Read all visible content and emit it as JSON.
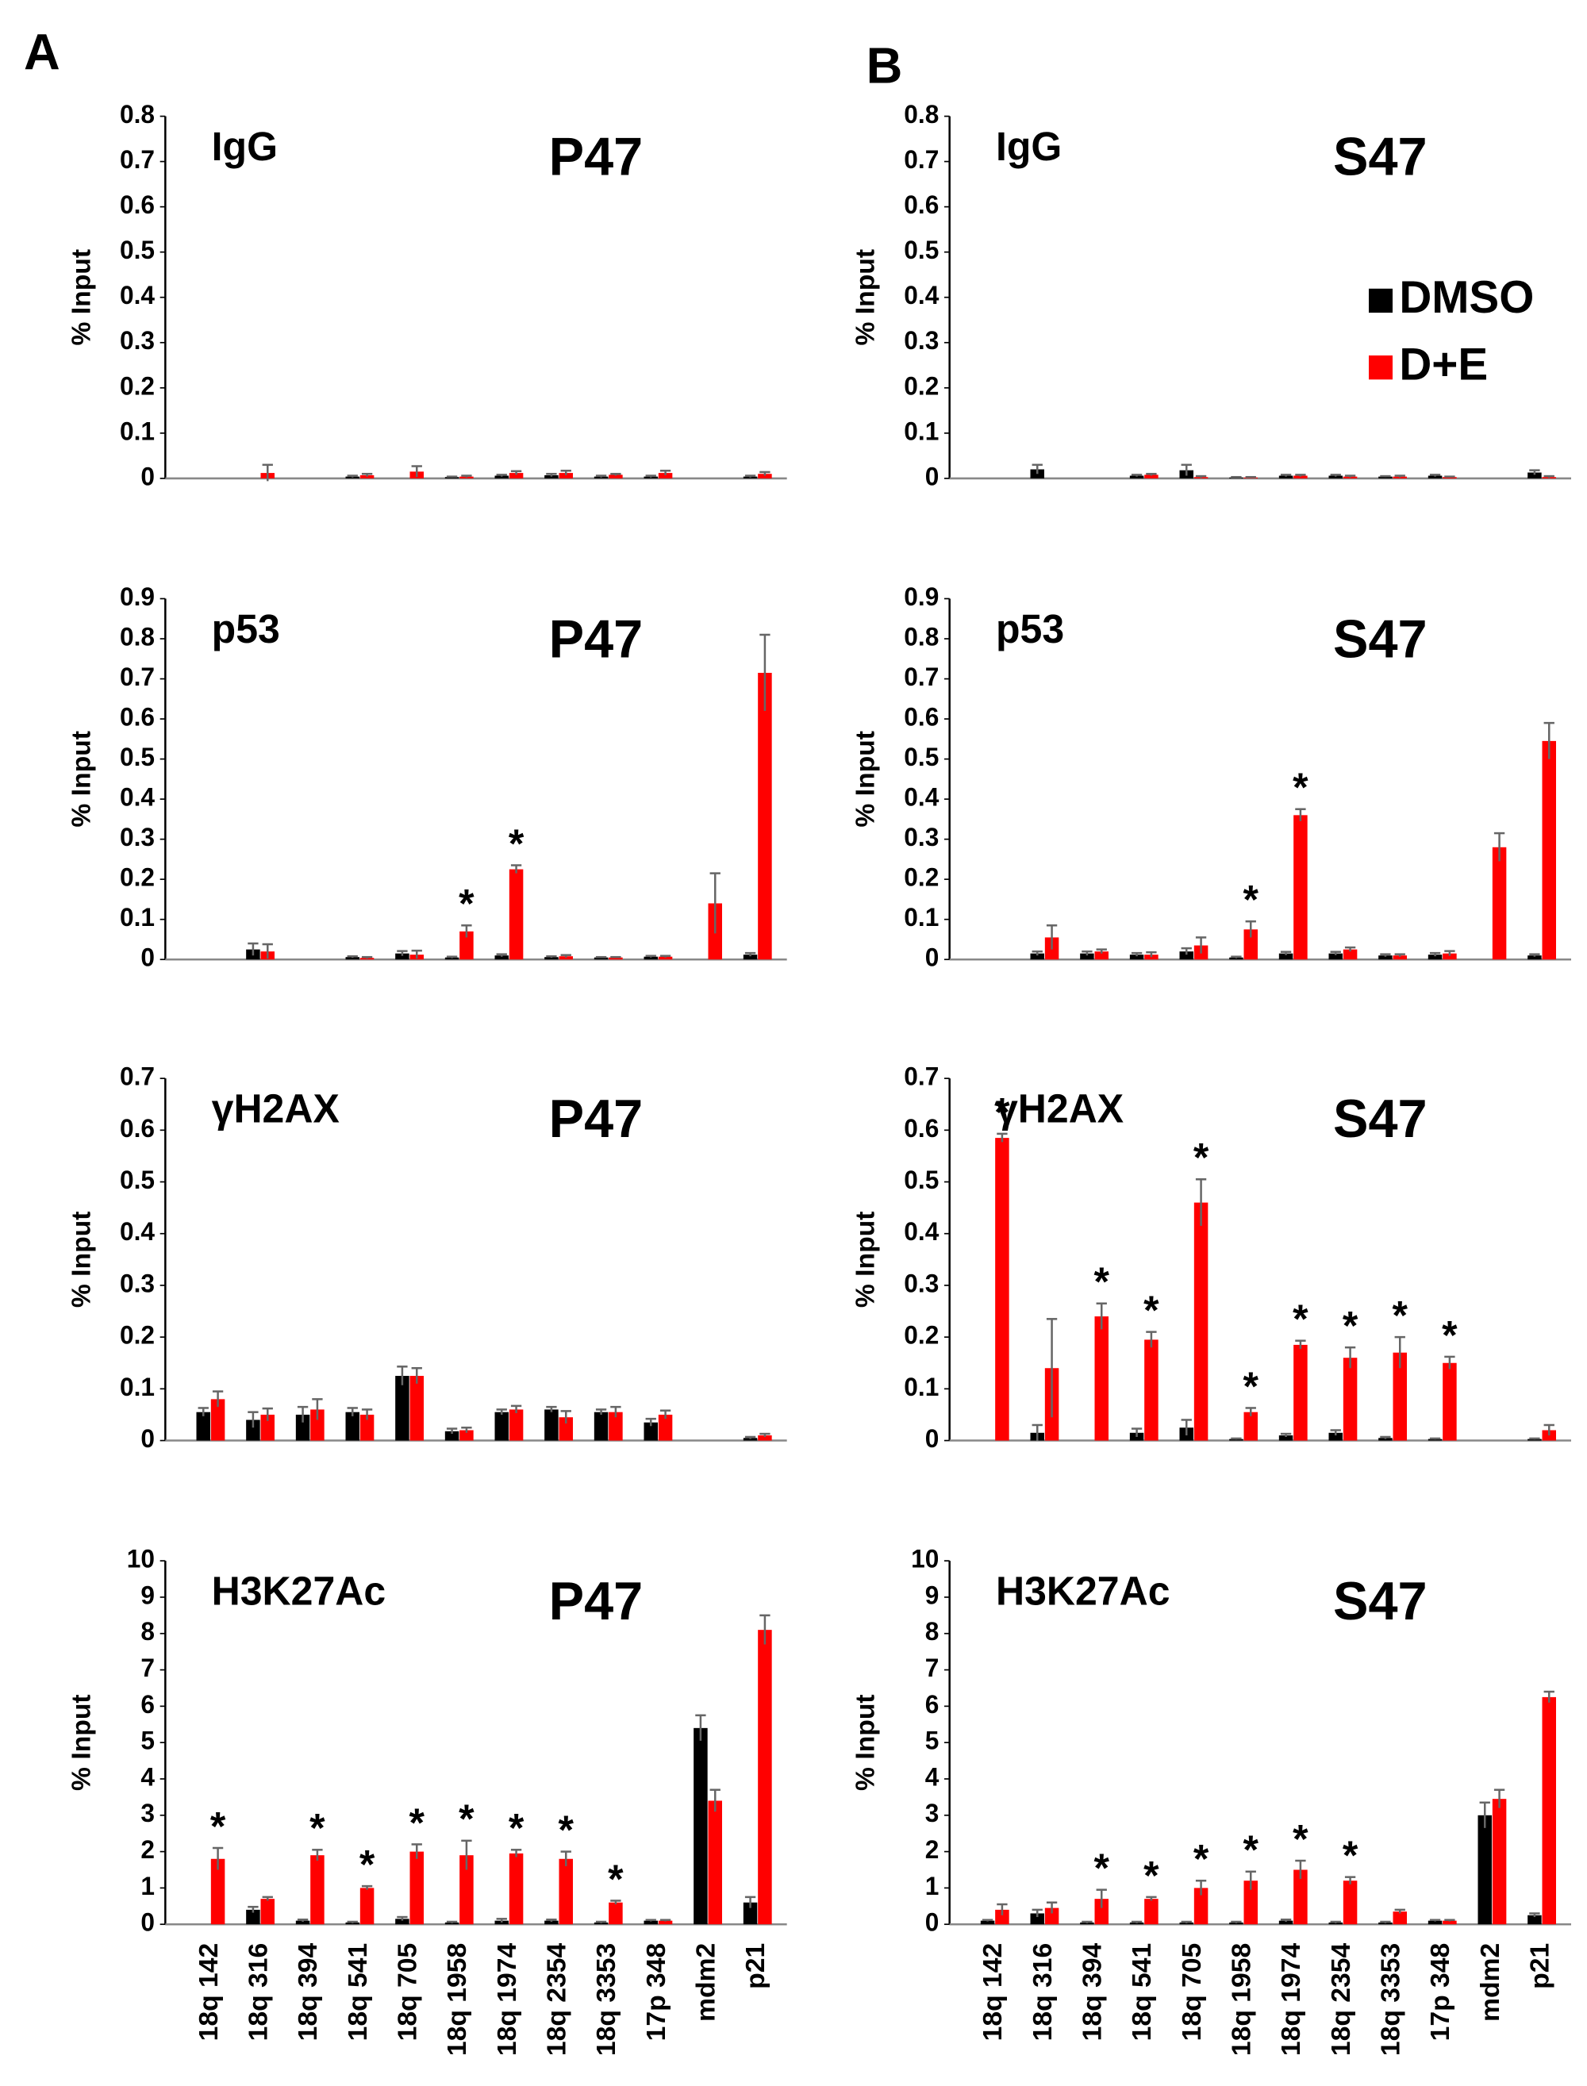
{
  "chart_data": [
    {
      "type": "bar",
      "panel": "A",
      "label": "IgG",
      "title": "P47",
      "y_label": "% Input",
      "categories": [
        null,
        null,
        null,
        null,
        null,
        null,
        null,
        null,
        null,
        null,
        null,
        null
      ],
      "ylim": [
        0,
        0.8
      ],
      "yticks": [
        0,
        0.1,
        0.2,
        0.3,
        0.4,
        0.5,
        0.6,
        0.7,
        0.8
      ],
      "series": [
        {
          "color": "#000000",
          "values": [
            0,
            0,
            0,
            0.004,
            0,
            0.003,
            0.006,
            0.007,
            0.004,
            0.004,
            0,
            0.004
          ],
          "errors": [
            0,
            0,
            0,
            0.002,
            0,
            0.001,
            0.002,
            0.003,
            0.002,
            0.002,
            0,
            0.002
          ]
        },
        {
          "color": "#ff0000",
          "values": [
            0,
            0.012,
            0,
            0.007,
            0.015,
            0.004,
            0.012,
            0.012,
            0.008,
            0.012,
            0,
            0.01
          ],
          "errors": [
            0,
            0.018,
            0,
            0.003,
            0.012,
            0.002,
            0.004,
            0.005,
            0.002,
            0.005,
            0,
            0.004
          ]
        }
      ]
    },
    {
      "type": "bar",
      "panel": "B",
      "label": "IgG",
      "title": "S47",
      "y_label": "% Input",
      "legend": true,
      "categories": [
        null,
        null,
        null,
        null,
        null,
        null,
        null,
        null,
        null,
        null,
        null,
        null
      ],
      "ylim": [
        0,
        0.8
      ],
      "yticks": [
        0,
        0.1,
        0.2,
        0.3,
        0.4,
        0.5,
        0.6,
        0.7,
        0.8
      ],
      "series": [
        {
          "name": "DMSO",
          "color": "#000000",
          "values": [
            0,
            0.02,
            0,
            0.006,
            0.018,
            0.002,
            0.006,
            0.006,
            0.004,
            0.006,
            0,
            0.013
          ],
          "errors": [
            0,
            0.01,
            0,
            0.002,
            0.012,
            0.001,
            0.002,
            0.002,
            0.001,
            0.002,
            0,
            0.005
          ]
        },
        {
          "name": "D+E",
          "color": "#ff0000",
          "values": [
            0,
            0,
            0,
            0.008,
            0.003,
            0.002,
            0.006,
            0.004,
            0.004,
            0.003,
            0,
            0.003
          ],
          "errors": [
            0,
            0,
            0,
            0.002,
            0.002,
            0.001,
            0.002,
            0.002,
            0.002,
            0.001,
            0,
            0.002
          ]
        }
      ]
    },
    {
      "type": "bar",
      "label": "p53",
      "title": "P47",
      "y_label": "% Input",
      "categories": [
        null,
        null,
        null,
        null,
        null,
        null,
        null,
        null,
        null,
        null,
        null,
        null
      ],
      "ylim": [
        0,
        0.9
      ],
      "yticks": [
        0,
        0.1,
        0.2,
        0.3,
        0.4,
        0.5,
        0.6,
        0.7,
        0.8,
        0.9
      ],
      "series": [
        {
          "color": "#000000",
          "values": [
            0,
            0.025,
            0,
            0.006,
            0.015,
            0.005,
            0.01,
            0.006,
            0.005,
            0.007,
            0,
            0.012
          ],
          "errors": [
            0,
            0.015,
            0,
            0.002,
            0.006,
            0.002,
            0.003,
            0.002,
            0.001,
            0.002,
            0,
            0.004
          ]
        },
        {
          "color": "#ff0000",
          "values": [
            0,
            0.02,
            0,
            0.004,
            0.012,
            0.07,
            0.225,
            0.008,
            0.005,
            0.007,
            0.14,
            0.715
          ],
          "errors": [
            0,
            0.018,
            0,
            0.002,
            0.01,
            0.015,
            0.01,
            0.003,
            0.001,
            0.002,
            0.075,
            0.095
          ],
          "significance": [
            null,
            null,
            null,
            null,
            null,
            "*",
            "*",
            null,
            null,
            null,
            null,
            null
          ]
        }
      ]
    },
    {
      "type": "bar",
      "label": "p53",
      "title": "S47",
      "y_label": "% Input",
      "categories": [
        null,
        null,
        null,
        null,
        null,
        null,
        null,
        null,
        null,
        null,
        null,
        null
      ],
      "ylim": [
        0,
        0.9
      ],
      "yticks": [
        0,
        0.1,
        0.2,
        0.3,
        0.4,
        0.5,
        0.6,
        0.7,
        0.8,
        0.9
      ],
      "series": [
        {
          "color": "#000000",
          "values": [
            0,
            0.015,
            0.015,
            0.012,
            0.02,
            0.005,
            0.015,
            0.015,
            0.01,
            0.012,
            0,
            0.01
          ],
          "errors": [
            0,
            0.005,
            0.005,
            0.004,
            0.008,
            0.002,
            0.004,
            0.004,
            0.003,
            0.004,
            0,
            0.003
          ]
        },
        {
          "color": "#ff0000",
          "values": [
            0,
            0.055,
            0.02,
            0.012,
            0.035,
            0.075,
            0.36,
            0.025,
            0.01,
            0.015,
            0.28,
            0.545
          ],
          "errors": [
            0,
            0.03,
            0.005,
            0.006,
            0.02,
            0.02,
            0.015,
            0.005,
            0.003,
            0.006,
            0.035,
            0.045
          ],
          "significance": [
            null,
            null,
            null,
            null,
            null,
            "*",
            "*",
            null,
            null,
            null,
            null,
            null
          ]
        }
      ]
    },
    {
      "type": "bar",
      "label": "γH2AX",
      "title": "P47",
      "y_label": "% Input",
      "categories": [
        null,
        null,
        null,
        null,
        null,
        null,
        null,
        null,
        null,
        null,
        null,
        null
      ],
      "ylim": [
        0,
        0.7
      ],
      "yticks": [
        0,
        0.1,
        0.2,
        0.3,
        0.4,
        0.5,
        0.6,
        0.7
      ],
      "series": [
        {
          "color": "#000000",
          "values": [
            0.055,
            0.04,
            0.05,
            0.055,
            0.125,
            0.018,
            0.055,
            0.06,
            0.055,
            0.035,
            0,
            0.005
          ],
          "errors": [
            0.008,
            0.015,
            0.015,
            0.008,
            0.018,
            0.005,
            0.005,
            0.005,
            0.005,
            0.007,
            0,
            0.002
          ]
        },
        {
          "color": "#ff0000",
          "values": [
            0.08,
            0.05,
            0.06,
            0.05,
            0.125,
            0.02,
            0.06,
            0.045,
            0.055,
            0.05,
            0,
            0.01
          ],
          "errors": [
            0.015,
            0.012,
            0.02,
            0.01,
            0.015,
            0.005,
            0.007,
            0.012,
            0.01,
            0.008,
            0,
            0.003
          ]
        }
      ]
    },
    {
      "type": "bar",
      "label": "γH2AX",
      "title": "S47",
      "y_label": "% Input",
      "categories": [
        null,
        null,
        null,
        null,
        null,
        null,
        null,
        null,
        null,
        null,
        null,
        null
      ],
      "ylim": [
        0,
        0.7
      ],
      "yticks": [
        0,
        0.1,
        0.2,
        0.3,
        0.4,
        0.5,
        0.6,
        0.7
      ],
      "series": [
        {
          "color": "#000000",
          "values": [
            0,
            0.015,
            0,
            0.015,
            0.025,
            0.003,
            0.01,
            0.015,
            0.005,
            0.003,
            0,
            0.003
          ],
          "errors": [
            0,
            0.015,
            0,
            0.008,
            0.015,
            0.001,
            0.003,
            0.005,
            0.002,
            0.001,
            0,
            0.001
          ]
        },
        {
          "color": "#ff0000",
          "values": [
            0.585,
            0.14,
            0.24,
            0.195,
            0.46,
            0.055,
            0.185,
            0.16,
            0.17,
            0.15,
            0,
            0.02
          ],
          "errors": [
            0.008,
            0.095,
            0.025,
            0.015,
            0.045,
            0.008,
            0.008,
            0.02,
            0.03,
            0.012,
            0,
            0.01
          ],
          "significance": [
            "*",
            null,
            "*",
            "*",
            "*",
            "*",
            "*",
            "*",
            "*",
            "*",
            null,
            null
          ]
        }
      ]
    },
    {
      "type": "bar",
      "label": "H3K27Ac",
      "title": "P47",
      "y_label": "% Input",
      "categories": [
        "18q 142",
        "18q 316",
        "18q 394",
        "18q 541",
        "18q 705",
        "18q 1958",
        "18q 1974",
        "18q 2354",
        "18q 3353",
        "17p 348",
        "mdm2",
        "p21"
      ],
      "ylim": [
        0,
        10
      ],
      "yticks": [
        0,
        1,
        2,
        3,
        4,
        5,
        6,
        7,
        8,
        9,
        10
      ],
      "series": [
        {
          "color": "#000000",
          "values": [
            0,
            0.4,
            0.1,
            0.05,
            0.15,
            0.05,
            0.1,
            0.1,
            0.05,
            0.1,
            5.4,
            0.6
          ],
          "errors": [
            0,
            0.08,
            0.03,
            0.02,
            0.05,
            0.02,
            0.05,
            0.03,
            0.02,
            0.02,
            0.35,
            0.15
          ]
        },
        {
          "color": "#ff0000",
          "values": [
            1.8,
            0.7,
            1.9,
            1.0,
            2.0,
            1.9,
            1.95,
            1.8,
            0.6,
            0.1,
            3.4,
            8.1
          ],
          "errors": [
            0.3,
            0.05,
            0.15,
            0.05,
            0.2,
            0.4,
            0.1,
            0.2,
            0.05,
            0.02,
            0.3,
            0.4
          ],
          "significance": [
            "*",
            null,
            "*",
            "*",
            "*",
            "*",
            "*",
            "*",
            "*",
            null,
            null,
            null
          ]
        }
      ]
    },
    {
      "type": "bar",
      "label": "H3K27Ac",
      "title": "S47",
      "y_label": "% Input",
      "categories": [
        "18q 142",
        "18q 316",
        "18q 394",
        "18q 541",
        "18q 705",
        "18q 1958",
        "18q 1974",
        "18q 2354",
        "18q 3353",
        "17p 348",
        "mdm2",
        "p21"
      ],
      "ylim": [
        0,
        10
      ],
      "yticks": [
        0,
        1,
        2,
        3,
        4,
        5,
        6,
        7,
        8,
        9,
        10
      ],
      "series": [
        {
          "color": "#000000",
          "values": [
            0.1,
            0.3,
            0.05,
            0.05,
            0.05,
            0.05,
            0.1,
            0.05,
            0.05,
            0.1,
            3.0,
            0.25
          ],
          "errors": [
            0.02,
            0.1,
            0.02,
            0.02,
            0.02,
            0.02,
            0.03,
            0.02,
            0.02,
            0.02,
            0.35,
            0.05
          ]
        },
        {
          "color": "#ff0000",
          "values": [
            0.4,
            0.45,
            0.7,
            0.7,
            1.0,
            1.2,
            1.5,
            1.2,
            0.35,
            0.1,
            3.45,
            6.25
          ],
          "errors": [
            0.15,
            0.15,
            0.25,
            0.05,
            0.2,
            0.25,
            0.25,
            0.1,
            0.05,
            0.02,
            0.25,
            0.15
          ],
          "significance": [
            null,
            null,
            "*",
            "*",
            "*",
            "*",
            "*",
            "*",
            null,
            null,
            null,
            null
          ]
        }
      ]
    }
  ]
}
